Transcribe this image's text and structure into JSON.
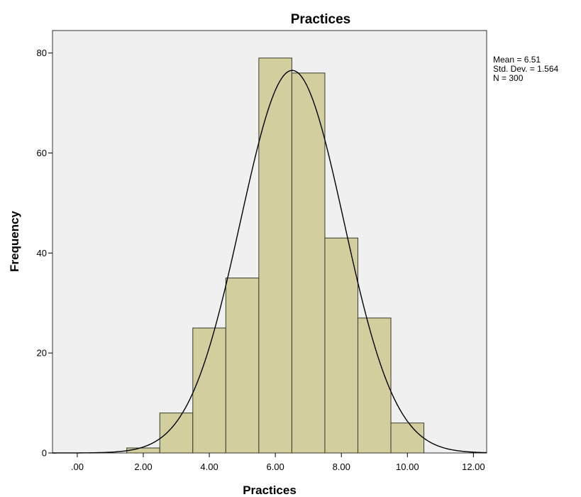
{
  "chart_data": {
    "type": "bar",
    "subtype": "histogram",
    "title": "Practices",
    "xlabel": "Practices",
    "ylabel": "Frequency",
    "xlim": [
      -0.75,
      12.4
    ],
    "ylim": [
      0,
      84.5
    ],
    "x_ticks": [
      0,
      2,
      4,
      6,
      8,
      10,
      12
    ],
    "x_tick_labels": [
      ".00",
      "2.00",
      "4.00",
      "6.00",
      "8.00",
      "10.00",
      "12.00"
    ],
    "y_ticks": [
      0,
      20,
      40,
      60,
      80
    ],
    "y_tick_labels": [
      "0",
      "20",
      "40",
      "60",
      "80"
    ],
    "bin_width": 1,
    "bins": [
      {
        "start": 1.5,
        "end": 2.5,
        "value": 1
      },
      {
        "start": 2.5,
        "end": 3.5,
        "value": 8
      },
      {
        "start": 3.5,
        "end": 4.5,
        "value": 25
      },
      {
        "start": 4.5,
        "end": 5.5,
        "value": 35
      },
      {
        "start": 5.5,
        "end": 6.5,
        "value": 79
      },
      {
        "start": 6.5,
        "end": 7.5,
        "value": 76
      },
      {
        "start": 7.5,
        "end": 8.5,
        "value": 43
      },
      {
        "start": 8.5,
        "end": 9.5,
        "value": 27
      },
      {
        "start": 9.5,
        "end": 10.5,
        "value": 6
      }
    ],
    "normal_curve": {
      "mean": 6.51,
      "std_dev": 1.564,
      "n": 300
    },
    "stats": {
      "mean_label": "Mean = 6.51",
      "std_label": "Std. Dev. = 1.564",
      "n_label": "N = 300"
    },
    "grid": false,
    "colors": {
      "bar_fill": "#d3ce9d",
      "bar_stroke": "#3a3a2a",
      "plot_background": "#f0f0f0",
      "curve": "#000000"
    }
  }
}
